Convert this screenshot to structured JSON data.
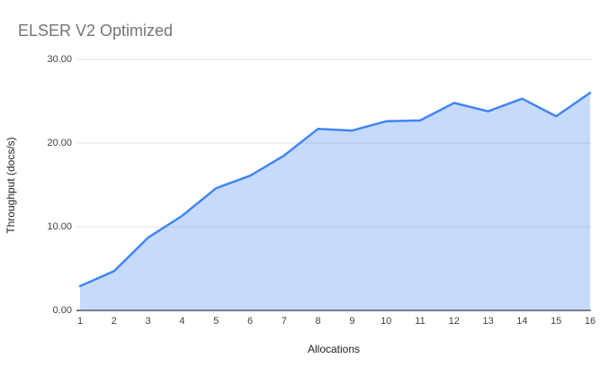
{
  "title": "ELSER V2 Optimized",
  "colors": {
    "series_line": "#4285f4",
    "series_fill": "#4285f4",
    "series_fill_opacity": 0.3,
    "gridline": "#e3e3e3",
    "axis_line": "#333333",
    "title_text": "#757575",
    "tick_text": "#424242"
  },
  "chart_data": {
    "type": "area",
    "title": "ELSER V2 Optimized",
    "xlabel": "Allocations",
    "ylabel": "Throughput (docs/s)",
    "x": [
      1,
      2,
      3,
      4,
      5,
      6,
      7,
      8,
      9,
      10,
      11,
      12,
      13,
      14,
      15,
      16
    ],
    "xtick_labels": [
      "1",
      "2",
      "3",
      "4",
      "5",
      "6",
      "7",
      "8",
      "9",
      "10",
      "11",
      "12",
      "13",
      "14",
      "15",
      "16"
    ],
    "series": [
      {
        "name": "Throughput (docs/s)",
        "values": [
          2.9,
          4.7,
          8.7,
          11.3,
          14.6,
          16.1,
          18.5,
          21.7,
          21.5,
          22.6,
          22.7,
          24.8,
          23.8,
          25.3,
          23.2,
          26.0
        ]
      }
    ],
    "ylim": [
      0,
      30
    ],
    "yticks": [
      0,
      10,
      20,
      30
    ],
    "ytick_labels": [
      "0.00",
      "10.00",
      "20.00",
      "30.00"
    ],
    "grid": true,
    "legend_position": "none"
  }
}
